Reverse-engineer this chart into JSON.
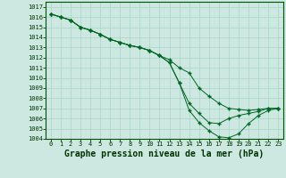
{
  "bg_color": "#cce8e0",
  "grid_color": "#aad4c8",
  "line_color": "#006622",
  "marker_color": "#006622",
  "xlabel": "Graphe pression niveau de la mer (hPa)",
  "xlabel_fontsize": 7,
  "ylim": [
    1004,
    1017.5
  ],
  "xlim": [
    -0.5,
    23.5
  ],
  "yticks": [
    1004,
    1005,
    1006,
    1007,
    1008,
    1009,
    1010,
    1011,
    1012,
    1013,
    1014,
    1015,
    1016,
    1017
  ],
  "xticks": [
    0,
    1,
    2,
    3,
    4,
    5,
    6,
    7,
    8,
    9,
    10,
    11,
    12,
    13,
    14,
    15,
    16,
    17,
    18,
    19,
    20,
    21,
    22,
    23
  ],
  "series1": {
    "x": [
      0,
      1,
      2,
      3,
      4,
      5,
      6,
      7,
      8,
      9,
      10,
      11,
      12,
      13,
      14,
      15,
      16,
      17,
      18,
      19,
      20,
      21,
      22,
      23
    ],
    "y": [
      1016.3,
      1016.0,
      1015.7,
      1015.0,
      1014.7,
      1014.3,
      1013.8,
      1013.5,
      1013.2,
      1013.0,
      1012.7,
      1012.2,
      1011.8,
      1011.0,
      1010.5,
      1009.0,
      1008.2,
      1007.5,
      1007.0,
      1006.9,
      1006.8,
      1006.9,
      1007.0,
      1007.0
    ]
  },
  "series2": {
    "x": [
      0,
      1,
      2,
      3,
      4,
      5,
      6,
      7,
      8,
      9,
      10,
      11,
      12,
      13,
      14,
      15,
      16,
      17,
      18,
      19,
      20,
      21,
      22,
      23
    ],
    "y": [
      1016.3,
      1016.0,
      1015.7,
      1015.0,
      1014.7,
      1014.3,
      1013.8,
      1013.5,
      1013.2,
      1013.0,
      1012.7,
      1012.2,
      1011.5,
      1009.5,
      1007.5,
      1006.5,
      1005.6,
      1005.5,
      1006.0,
      1006.3,
      1006.5,
      1006.7,
      1007.0,
      1007.0
    ]
  },
  "series3": {
    "x": [
      0,
      1,
      2,
      3,
      4,
      5,
      6,
      7,
      8,
      9,
      10,
      11,
      12,
      13,
      14,
      15,
      16,
      17,
      18,
      19,
      20,
      21,
      22,
      23
    ],
    "y": [
      1016.3,
      1016.0,
      1015.7,
      1015.0,
      1014.7,
      1014.3,
      1013.8,
      1013.5,
      1013.2,
      1013.0,
      1012.7,
      1012.2,
      1011.5,
      1009.5,
      1006.8,
      1005.6,
      1004.8,
      1004.2,
      1004.1,
      1004.5,
      1005.5,
      1006.3,
      1006.8,
      1007.0
    ]
  }
}
